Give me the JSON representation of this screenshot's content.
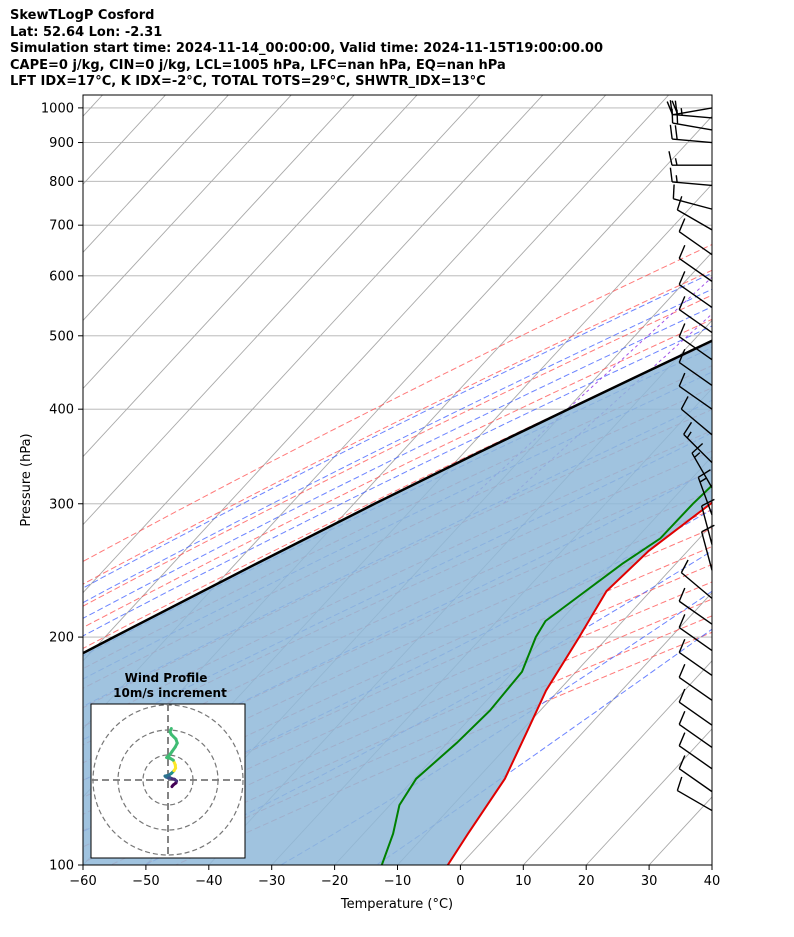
{
  "title_lines": [
    "SkewTLogP Cosford",
    "Lat: 52.64   Lon: -2.31",
    "Simulation start time: 2024-11-14_00:00:00, Valid time: 2024-11-15T19:00:00.00",
    "CAPE=0 j/kg, CIN=0 j/kg, LCL=1005 hPa, LFC=nan hPa, EQ=nan hPa",
    "LFT IDX=17°C, K IDX=-2°C, TOTAL TOTS=29°C, SHWTR_IDX=13°C"
  ],
  "chart_data": {
    "type": "skew-t",
    "xlabel": "Temperature (°C)",
    "ylabel": "Pressure (hPa)",
    "xlim": [
      -60,
      40
    ],
    "ylim": [
      1040,
      100
    ],
    "x_ticks": [
      "−60",
      "−50",
      "−40",
      "−30",
      "−20",
      "−10",
      "0",
      "10",
      "20",
      "30",
      "40"
    ],
    "x_tick_values": [
      -60,
      -50,
      -40,
      -30,
      -20,
      -10,
      0,
      10,
      20,
      30,
      40
    ],
    "y_ticks": [
      "1000",
      "900",
      "800",
      "700",
      "600",
      "500",
      "400",
      "300",
      "200",
      "100"
    ],
    "y_tick_values": [
      1000,
      900,
      800,
      700,
      600,
      500,
      400,
      300,
      200,
      100
    ],
    "grid": true,
    "temperature": {
      "color": "#e00000",
      "points": [
        [
          1000,
          7.2
        ],
        [
          970,
          9
        ],
        [
          940,
          11
        ],
        [
          910,
          12.6
        ],
        [
          880,
          13.3
        ],
        [
          800,
          12
        ],
        [
          750,
          10.8
        ],
        [
          700,
          10.5
        ],
        [
          650,
          9.7
        ],
        [
          600,
          7.6
        ],
        [
          550,
          4.5
        ],
        [
          500,
          1
        ],
        [
          450,
          -2.4
        ],
        [
          400,
          -6
        ],
        [
          350,
          -9.9
        ],
        [
          300,
          -13.3
        ],
        [
          260,
          -16.2
        ],
        [
          230,
          -17
        ],
        [
          200,
          -14.6
        ],
        [
          170,
          -12
        ],
        [
          150,
          -9
        ],
        [
          130,
          -5.6
        ],
        [
          110,
          -3.4
        ],
        [
          100,
          -2
        ]
      ]
    },
    "dewpoint": {
      "color": "#008000",
      "points": [
        [
          1000,
          7
        ],
        [
          980,
          7
        ],
        [
          950,
          7.7
        ],
        [
          920,
          8
        ],
        [
          880,
          -0.3
        ],
        [
          800,
          -6.7
        ],
        [
          760,
          -4.8
        ],
        [
          720,
          -2.5
        ],
        [
          690,
          -5
        ],
        [
          590,
          -24.2
        ],
        [
          560,
          -21.8
        ],
        [
          520,
          -17.5
        ],
        [
          480,
          -14.6
        ],
        [
          430,
          -12.3
        ],
        [
          380,
          -11.5
        ],
        [
          340,
          -15.3
        ],
        [
          300,
          -16.1
        ],
        [
          270,
          -16.2
        ],
        [
          250,
          -18.5
        ],
        [
          210,
          -22.3
        ],
        [
          200,
          -21.5
        ],
        [
          180,
          -18.6
        ],
        [
          160,
          -18
        ],
        [
          145,
          -18.5
        ],
        [
          130,
          -19.7
        ],
        [
          120,
          -18.5
        ],
        [
          110,
          -15.3
        ],
        [
          100,
          -12.5
        ]
      ]
    },
    "parcel_profile": {
      "color": "#000000",
      "points": [
        [
          1000,
          7.2
        ],
        [
          950,
          3.8
        ],
        [
          900,
          0.3
        ],
        [
          850,
          -3.3
        ],
        [
          800,
          -7.1
        ],
        [
          750,
          -11.1
        ],
        [
          700,
          -15.4
        ],
        [
          650,
          -20
        ],
        [
          600,
          -24.9
        ],
        [
          550,
          -30.3
        ],
        [
          500,
          -36.1
        ],
        [
          450,
          -42.6
        ],
        [
          400,
          -49.8
        ],
        [
          350,
          -57.8
        ],
        [
          300,
          -66.7
        ],
        [
          250,
          -76.7
        ],
        [
          200,
          -88.6
        ],
        [
          150,
          -103.5
        ],
        [
          100,
          -123.4
        ]
      ]
    },
    "cin_fill": {
      "color": "#8fb9d9"
    },
    "dry_adiabats": {
      "color": "#ff4d4d",
      "theta_K": [
        250,
        260,
        270,
        280,
        290,
        300,
        310,
        320,
        330,
        340,
        350,
        360,
        370,
        380,
        390,
        400,
        410,
        420,
        430,
        440
      ]
    },
    "moist_adiabats": {
      "color": "#3b5bff",
      "theta_w_C": [
        -15,
        -10,
        -5,
        0,
        5,
        10,
        15,
        20,
        25,
        30,
        35,
        40,
        45
      ]
    },
    "mixing_ratio": {
      "color": "#8b2be2",
      "values_gkg": [
        0.1,
        0.2
      ]
    },
    "isotherms": {
      "color": "#a9a9a9",
      "temps_C": [
        -170,
        -160,
        -150,
        -140,
        -130,
        -120,
        -110,
        -100,
        -90,
        -80,
        -70,
        -60,
        -50,
        -40,
        -30,
        -20,
        -10,
        0,
        10,
        20,
        30,
        40
      ]
    },
    "wind_barbs": [
      {
        "p": 1000,
        "dir": 260,
        "kt": 22
      },
      {
        "p": 970,
        "dir": 275,
        "kt": 25
      },
      {
        "p": 935,
        "dir": 280,
        "kt": 22
      },
      {
        "p": 900,
        "dir": 275,
        "kt": 20
      },
      {
        "p": 840,
        "dir": 270,
        "kt": 15
      },
      {
        "p": 790,
        "dir": 275,
        "kt": 15
      },
      {
        "p": 735,
        "dir": 285,
        "kt": 12
      },
      {
        "p": 690,
        "dir": 300,
        "kt": 12
      },
      {
        "p": 640,
        "dir": 305,
        "kt": 12
      },
      {
        "p": 590,
        "dir": 305,
        "kt": 12
      },
      {
        "p": 545,
        "dir": 305,
        "kt": 12
      },
      {
        "p": 505,
        "dir": 305,
        "kt": 12
      },
      {
        "p": 465,
        "dir": 305,
        "kt": 12
      },
      {
        "p": 430,
        "dir": 305,
        "kt": 12
      },
      {
        "p": 400,
        "dir": 305,
        "kt": 12
      },
      {
        "p": 370,
        "dir": 310,
        "kt": 12
      },
      {
        "p": 340,
        "dir": 315,
        "kt": 15
      },
      {
        "p": 315,
        "dir": 330,
        "kt": 13
      },
      {
        "p": 290,
        "dir": 340,
        "kt": 13
      },
      {
        "p": 265,
        "dir": 345,
        "kt": 12
      },
      {
        "p": 245,
        "dir": 345,
        "kt": 12
      },
      {
        "p": 225,
        "dir": 310,
        "kt": 12
      },
      {
        "p": 208,
        "dir": 305,
        "kt": 12
      },
      {
        "p": 192,
        "dir": 305,
        "kt": 12
      },
      {
        "p": 178,
        "dir": 305,
        "kt": 12
      },
      {
        "p": 165,
        "dir": 305,
        "kt": 12
      },
      {
        "p": 153,
        "dir": 305,
        "kt": 12
      },
      {
        "p": 143,
        "dir": 305,
        "kt": 12
      },
      {
        "p": 134,
        "dir": 305,
        "kt": 12
      },
      {
        "p": 125,
        "dir": 305,
        "kt": 12
      },
      {
        "p": 118,
        "dir": 300,
        "kt": 12
      }
    ],
    "hodograph": {
      "title": "Wind Profile",
      "subtitle": "10m/s increment",
      "rings_ms": [
        10,
        20,
        30
      ],
      "points": [
        [
          1.2,
          -2.0
        ],
        [
          1.6,
          -1.5
        ],
        [
          2.4,
          -0.9
        ],
        [
          2.6,
          -0.3
        ],
        [
          2.0,
          0.2
        ],
        [
          1.2,
          0.4
        ],
        [
          0.6,
          0.7
        ],
        [
          0.1,
          0.6
        ],
        [
          -0.6,
          0.9
        ],
        [
          -0.9,
          1.2
        ],
        [
          0.3,
          1.5
        ],
        [
          1.0,
          2.0
        ],
        [
          1.8,
          2.8
        ],
        [
          2.3,
          3.6
        ],
        [
          2.2,
          4.6
        ],
        [
          1.6,
          6.0
        ],
        [
          0.6,
          6.6
        ],
        [
          -0.4,
          6.8
        ],
        [
          0.5,
          7.6
        ],
        [
          1.2,
          8.6
        ],
        [
          2.2,
          10.0
        ],
        [
          2.8,
          11.2
        ],
        [
          2.4,
          12.4
        ],
        [
          1.0,
          13.8
        ],
        [
          0.6,
          14.6
        ],
        [
          1.0,
          15.6
        ]
      ]
    }
  }
}
